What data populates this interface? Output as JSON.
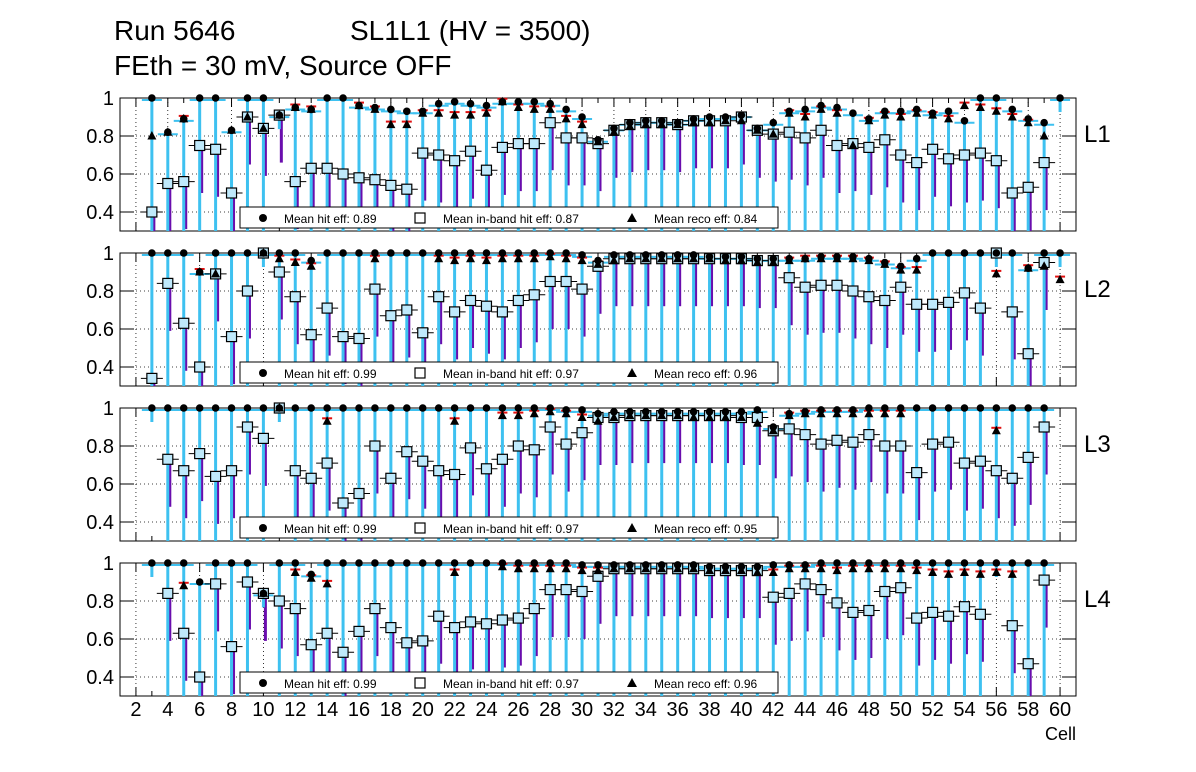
{
  "header": {
    "run_label": "Run 5646",
    "chamber_label": "SL1L1 (HV = 3500)",
    "config_label": "FEth = 30 mV, Source OFF"
  },
  "chart_data": {
    "type": "scatter",
    "x_axis": {
      "label": "Cell",
      "range": [
        1,
        61
      ],
      "ticks": [
        2,
        4,
        6,
        8,
        10,
        12,
        14,
        16,
        18,
        20,
        22,
        24,
        26,
        28,
        30,
        32,
        34,
        36,
        38,
        40,
        42,
        44,
        46,
        48,
        50,
        52,
        54,
        56,
        58,
        60
      ]
    },
    "y_axis": {
      "range": [
        0.3,
        1.0
      ],
      "ticks": [
        0.4,
        0.6,
        0.8,
        1
      ],
      "tick_labels": [
        "0.4",
        "0.6",
        "0.8",
        "1"
      ]
    },
    "grid": true,
    "legend_placement": "bottom",
    "colors": {
      "hit": "#000000",
      "inband": "#5bc8f5",
      "reco": "#000000",
      "err_hit": "#3ec1f0",
      "err_inband": "#6a0dad",
      "err_reco": "#e01010",
      "grid": "#000000"
    },
    "panels": [
      {
        "name": "L1",
        "legend": {
          "hit": "Mean hit  eff: 0.89",
          "inband": "Mean in-band hit eff: 0.87",
          "reco": "Mean reco eff: 0.84"
        },
        "hit": [
          null,
          null,
          1.0,
          0.82,
          0.89,
          1.0,
          1.0,
          0.83,
          1.0,
          1.0,
          0.91,
          0.95,
          0.94,
          1.0,
          1.0,
          0.96,
          0.95,
          0.94,
          0.93,
          0.93,
          0.97,
          0.98,
          0.97,
          0.96,
          0.98,
          0.98,
          0.98,
          0.97,
          0.94,
          0.9,
          0.78,
          0.84,
          0.87,
          0.88,
          0.88,
          0.87,
          0.89,
          0.9,
          0.9,
          0.91,
          0.84,
          0.87,
          0.93,
          0.94,
          0.96,
          0.95,
          0.92,
          0.89,
          0.93,
          0.93,
          0.94,
          0.92,
          0.93,
          0.88,
          1.0,
          1.0,
          0.94,
          0.89,
          0.87,
          1.0
        ],
        "inband": [
          null,
          null,
          0.4,
          0.55,
          0.56,
          0.75,
          0.73,
          0.5,
          0.9,
          0.84,
          0.91,
          0.56,
          0.63,
          0.63,
          0.6,
          0.58,
          0.57,
          0.54,
          0.52,
          0.71,
          0.7,
          0.67,
          0.72,
          0.62,
          0.74,
          0.76,
          0.76,
          0.87,
          0.79,
          0.79,
          0.76,
          0.83,
          0.86,
          0.87,
          0.87,
          0.86,
          0.88,
          0.88,
          0.88,
          0.9,
          0.83,
          0.81,
          0.82,
          0.79,
          0.83,
          0.75,
          0.76,
          0.74,
          0.78,
          0.7,
          0.66,
          0.73,
          0.68,
          0.7,
          0.71,
          0.67,
          0.5,
          0.53,
          0.66,
          null
        ],
        "reco": [
          null,
          null,
          0.8,
          0.82,
          0.89,
          null,
          null,
          0.83,
          0.9,
          0.84,
          0.91,
          0.95,
          0.94,
          null,
          null,
          0.96,
          0.94,
          0.86,
          0.86,
          0.92,
          0.92,
          0.91,
          0.91,
          0.92,
          0.98,
          0.95,
          0.94,
          0.94,
          0.89,
          0.86,
          0.77,
          0.82,
          0.85,
          0.86,
          0.86,
          0.86,
          0.87,
          0.87,
          0.88,
          0.88,
          0.83,
          0.81,
          0.92,
          0.9,
          0.94,
          0.92,
          0.75,
          0.88,
          0.91,
          0.9,
          0.92,
          0.91,
          0.89,
          0.96,
          0.95,
          0.93,
          0.9,
          0.87,
          0.8,
          null
        ]
      },
      {
        "name": "L2",
        "legend": {
          "hit": "Mean hit  eff: 0.99",
          "inband": "Mean in-band hit eff: 0.97",
          "reco": "Mean reco eff: 0.96"
        },
        "hit": [
          null,
          null,
          1.0,
          1.0,
          1.0,
          0.9,
          1.0,
          1.0,
          1.0,
          1.0,
          1.0,
          1.0,
          0.96,
          1.0,
          1.0,
          1.0,
          1.0,
          1.0,
          1.0,
          1.0,
          1.0,
          1.0,
          1.0,
          1.0,
          1.0,
          1.0,
          1.0,
          1.0,
          1.0,
          0.99,
          0.96,
          0.99,
          0.99,
          0.99,
          0.99,
          0.99,
          0.99,
          0.98,
          0.98,
          0.98,
          0.97,
          0.97,
          0.97,
          0.97,
          0.98,
          0.98,
          0.98,
          0.97,
          0.95,
          0.93,
          0.97,
          1.0,
          1.0,
          1.0,
          1.0,
          1.0,
          1.0,
          0.92,
          1.0,
          1.0
        ],
        "inband": [
          null,
          null,
          0.34,
          0.84,
          0.63,
          0.4,
          0.89,
          0.56,
          0.8,
          1.0,
          0.9,
          0.77,
          0.57,
          0.71,
          0.56,
          0.55,
          0.81,
          0.67,
          0.7,
          0.58,
          0.77,
          0.69,
          0.75,
          0.72,
          0.69,
          0.75,
          0.78,
          0.85,
          0.85,
          0.81,
          0.93,
          0.97,
          0.97,
          0.97,
          0.97,
          0.97,
          0.97,
          0.97,
          0.97,
          0.97,
          0.96,
          0.96,
          0.87,
          0.82,
          0.83,
          0.83,
          0.8,
          0.77,
          0.75,
          0.82,
          0.73,
          0.73,
          0.74,
          0.79,
          0.71,
          1.0,
          0.69,
          0.47,
          0.95,
          null
        ],
        "reco": [
          null,
          null,
          null,
          null,
          null,
          0.9,
          0.89,
          null,
          null,
          1.0,
          0.97,
          0.95,
          0.93,
          null,
          null,
          null,
          0.97,
          null,
          null,
          null,
          0.97,
          0.96,
          0.97,
          0.96,
          0.97,
          0.97,
          0.97,
          0.98,
          0.97,
          0.96,
          0.94,
          0.96,
          0.97,
          0.97,
          0.97,
          0.97,
          0.97,
          0.97,
          0.96,
          0.96,
          0.95,
          0.95,
          0.96,
          0.97,
          0.97,
          0.97,
          0.97,
          0.96,
          0.94,
          0.91,
          0.91,
          null,
          null,
          null,
          null,
          0.89,
          null,
          0.92,
          0.93,
          0.86
        ]
      },
      {
        "name": "L3",
        "legend": {
          "hit": "Mean hit  eff: 0.99",
          "inband": "Mean in-band hit eff: 0.97",
          "reco": "Mean reco eff: 0.95"
        },
        "hit": [
          null,
          null,
          1.0,
          1.0,
          1.0,
          1.0,
          1.0,
          1.0,
          1.0,
          1.0,
          1.0,
          1.0,
          1.0,
          1.0,
          1.0,
          1.0,
          1.0,
          1.0,
          1.0,
          1.0,
          1.0,
          1.0,
          1.0,
          1.0,
          1.0,
          1.0,
          1.0,
          1.0,
          0.99,
          0.99,
          0.97,
          0.98,
          0.98,
          0.98,
          0.98,
          0.98,
          0.98,
          0.98,
          0.98,
          0.98,
          0.99,
          0.9,
          0.97,
          0.98,
          0.99,
          0.99,
          0.99,
          1.0,
          1.0,
          1.0,
          1.0,
          1.0,
          1.0,
          1.0,
          1.0,
          1.0,
          1.0,
          1.0,
          1.0,
          null
        ],
        "inband": [
          null,
          null,
          null,
          0.73,
          0.67,
          0.76,
          0.64,
          0.67,
          0.9,
          0.84,
          1.0,
          0.67,
          0.63,
          0.71,
          0.5,
          0.55,
          0.8,
          0.63,
          0.77,
          0.72,
          0.67,
          0.65,
          0.79,
          0.68,
          0.73,
          0.8,
          0.78,
          0.9,
          0.81,
          0.87,
          0.95,
          0.95,
          0.96,
          0.96,
          0.96,
          0.96,
          0.96,
          0.96,
          0.96,
          0.95,
          0.95,
          0.88,
          0.89,
          0.86,
          0.81,
          0.83,
          0.82,
          0.86,
          0.8,
          0.8,
          0.66,
          0.81,
          0.82,
          0.71,
          0.72,
          0.67,
          0.63,
          0.74,
          0.9,
          null
        ],
        "reco": [
          null,
          null,
          null,
          null,
          null,
          null,
          null,
          null,
          null,
          null,
          1.0,
          null,
          null,
          0.93,
          null,
          null,
          null,
          null,
          null,
          null,
          null,
          0.93,
          null,
          null,
          0.96,
          0.96,
          0.97,
          0.98,
          0.97,
          0.95,
          0.93,
          0.95,
          0.96,
          0.96,
          0.96,
          0.96,
          0.95,
          0.95,
          0.95,
          0.95,
          0.92,
          0.88,
          0.96,
          0.97,
          0.97,
          0.97,
          0.97,
          0.97,
          0.97,
          0.97,
          null,
          null,
          null,
          null,
          null,
          0.88,
          null,
          null,
          null,
          null
        ]
      },
      {
        "name": "L4",
        "legend": {
          "hit": "Mean hit  eff: 0.99",
          "inband": "Mean in-band hit eff: 0.97",
          "reco": "Mean reco eff: 0.96"
        },
        "hit": [
          null,
          null,
          1.0,
          1.0,
          1.0,
          0.9,
          1.0,
          1.0,
          1.0,
          0.84,
          1.0,
          1.0,
          0.94,
          1.0,
          1.0,
          1.0,
          1.0,
          1.0,
          1.0,
          1.0,
          1.0,
          1.0,
          1.0,
          1.0,
          1.0,
          1.0,
          1.0,
          1.0,
          1.0,
          0.99,
          0.99,
          0.99,
          0.99,
          0.99,
          0.99,
          0.99,
          0.99,
          0.98,
          0.98,
          0.98,
          0.98,
          0.99,
          0.99,
          0.99,
          1.0,
          1.0,
          1.0,
          1.0,
          1.0,
          1.0,
          1.0,
          1.0,
          1.0,
          1.0,
          1.0,
          1.0,
          1.0,
          1.0,
          1.0,
          null
        ],
        "inband": [
          null,
          null,
          null,
          0.84,
          0.63,
          0.4,
          0.89,
          0.56,
          0.9,
          0.84,
          0.8,
          0.76,
          0.57,
          0.63,
          0.53,
          0.64,
          0.76,
          0.66,
          0.58,
          0.59,
          0.72,
          0.66,
          0.69,
          0.68,
          0.7,
          0.71,
          0.76,
          0.86,
          0.86,
          0.85,
          0.93,
          0.97,
          0.97,
          0.97,
          0.97,
          0.97,
          0.97,
          0.96,
          0.96,
          0.96,
          0.96,
          0.82,
          0.84,
          0.89,
          0.86,
          0.79,
          0.74,
          0.75,
          0.85,
          0.87,
          0.71,
          0.74,
          0.72,
          0.77,
          0.73,
          null,
          0.67,
          0.47,
          0.91,
          null
        ],
        "reco": [
          null,
          null,
          null,
          null,
          0.88,
          null,
          null,
          null,
          null,
          0.84,
          null,
          0.95,
          0.92,
          0.89,
          null,
          null,
          null,
          null,
          null,
          null,
          null,
          0.95,
          null,
          null,
          0.98,
          0.97,
          0.97,
          0.97,
          0.97,
          0.96,
          0.96,
          0.97,
          0.97,
          0.97,
          0.97,
          0.97,
          0.97,
          0.96,
          0.96,
          0.96,
          0.95,
          0.95,
          0.97,
          0.97,
          0.97,
          0.96,
          0.97,
          0.97,
          0.97,
          0.97,
          0.96,
          0.95,
          0.94,
          0.95,
          0.94,
          0.95,
          0.94,
          null,
          null,
          null
        ]
      }
    ]
  }
}
